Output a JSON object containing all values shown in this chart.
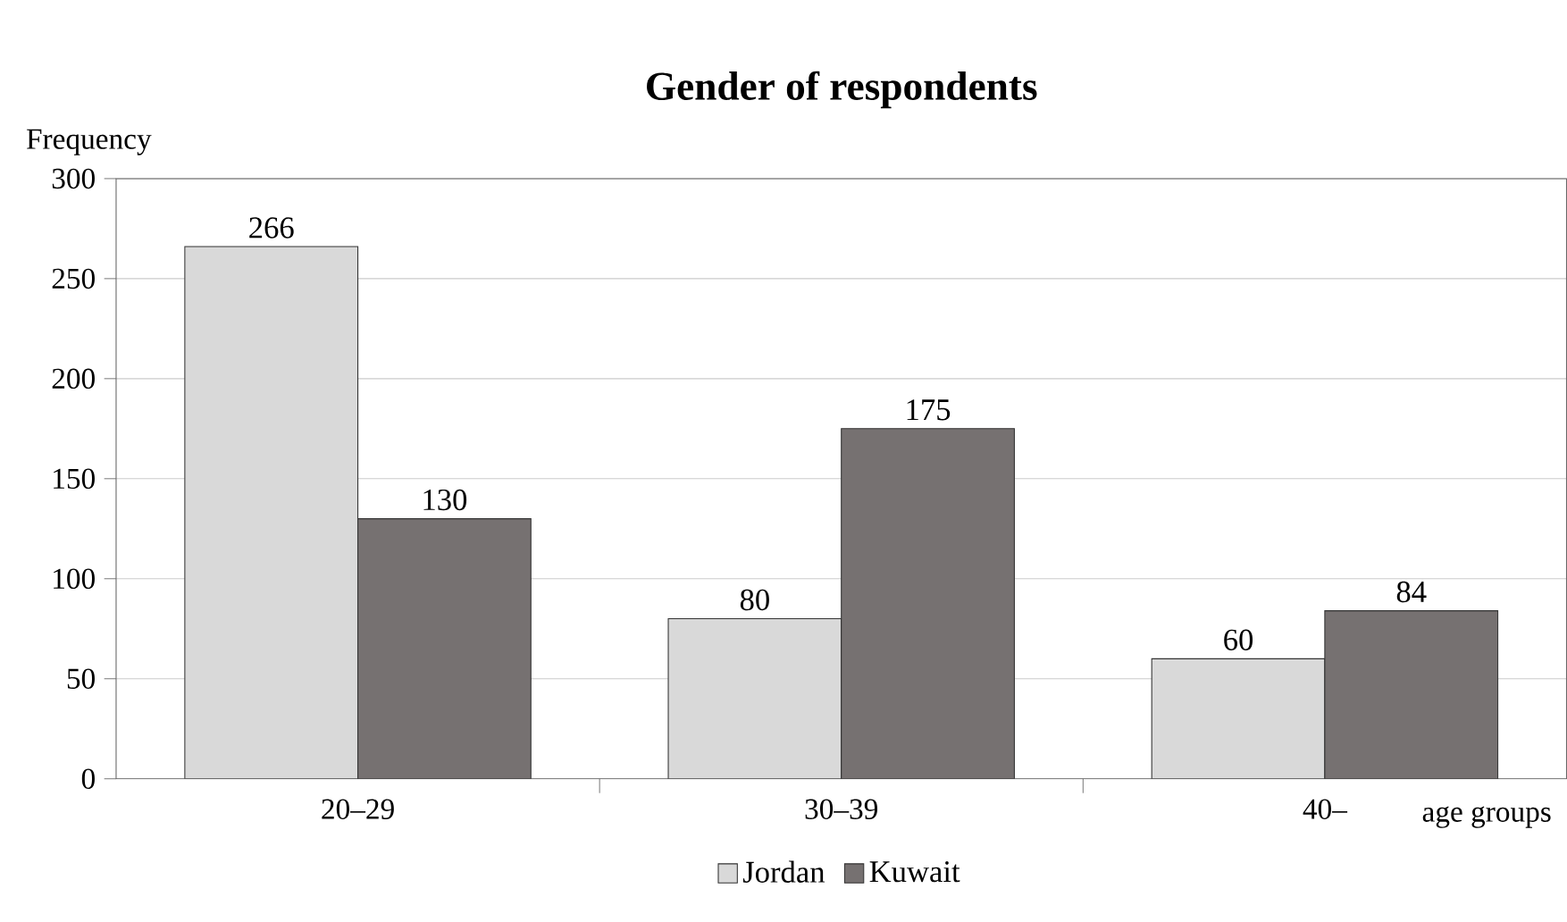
{
  "chart_data": {
    "type": "bar",
    "title": "Gender of respondents",
    "xlabel": "age groups",
    "ylabel": "Frequency",
    "categories": [
      "20–29",
      "30–39",
      "40–"
    ],
    "series": [
      {
        "name": "Jordan",
        "color": "#d9d9d9",
        "values": [
          266,
          80,
          60
        ]
      },
      {
        "name": "Kuwait",
        "color": "#767171",
        "values": [
          130,
          175,
          84
        ]
      }
    ],
    "ylim": [
      0,
      300
    ],
    "yticks": [
      0,
      50,
      100,
      150,
      200,
      250,
      300
    ],
    "grid": "y",
    "legend": "bottom",
    "data_labels": true
  }
}
